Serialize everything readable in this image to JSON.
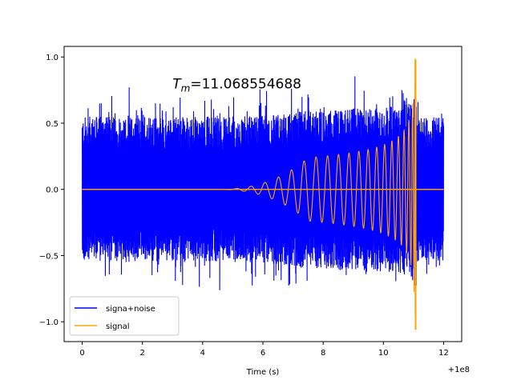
{
  "chart_data": {
    "type": "line",
    "xlabel": "Time (s)",
    "ylabel": "",
    "title": "",
    "x_offset_label": "+1e8",
    "xlim": [
      -0.6,
      12.6
    ],
    "ylim": [
      -1.15,
      1.08
    ],
    "x_ticks": [
      0,
      2,
      4,
      6,
      8,
      10,
      12
    ],
    "y_ticks": [
      -1.0,
      -0.5,
      0.0,
      0.5,
      1.0
    ],
    "x_tick_labels": [
      "0",
      "2",
      "4",
      "6",
      "8",
      "10",
      "12"
    ],
    "y_tick_labels": [
      "−1.0",
      "−0.5",
      "0.0",
      "0.5",
      "1.0"
    ],
    "annotation": {
      "symbol": "T",
      "subscript": "m",
      "value_text": "=11.068554688",
      "x": 3.0,
      "y": 0.8
    },
    "legend_position": "lower-left",
    "grid": false,
    "series": [
      {
        "name": "signa+noise",
        "color": "#0000ff",
        "x_range": [
          0,
          12
        ],
        "description_values": {
          "noise_envelope_typical": 0.5,
          "noise_peak": 0.95
        }
      },
      {
        "name": "signal",
        "color": "#ffa500",
        "x_range": [
          0,
          12
        ],
        "chirp": {
          "onset": 4.5,
          "merger": 11.07,
          "amp_at_8": 0.25,
          "amp_at_10": 0.35,
          "peak_positive": 0.98,
          "peak_negative": -1.06
        }
      }
    ]
  }
}
